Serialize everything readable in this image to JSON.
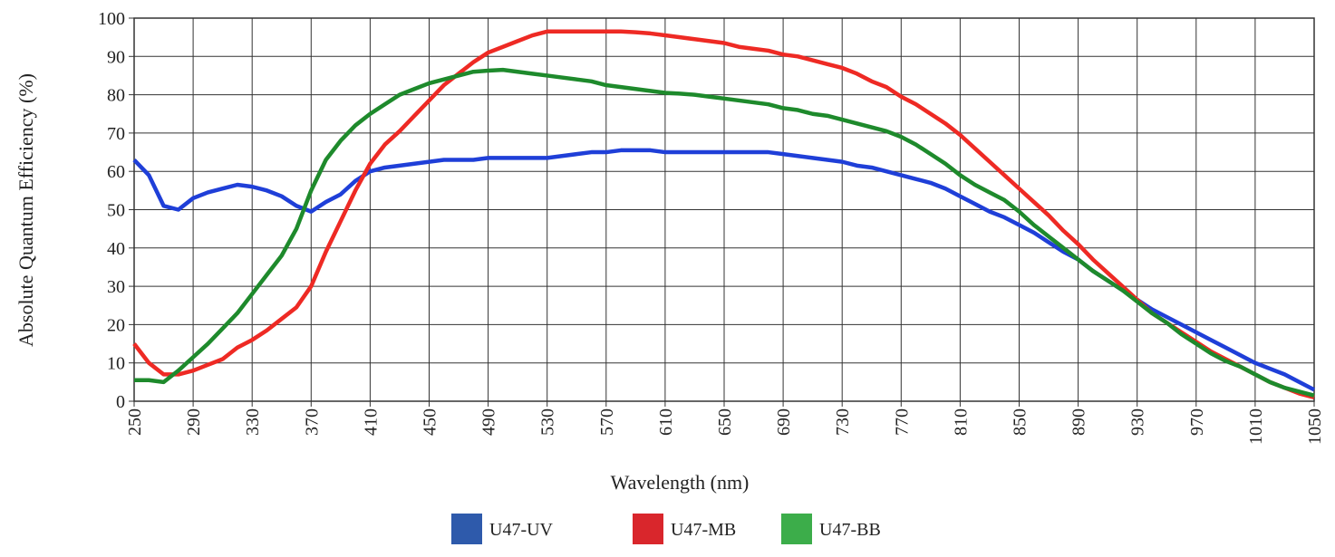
{
  "chart_data": {
    "type": "line",
    "xlabel": "Wavelength (nm)",
    "ylabel": "Absolute Quantum Efficiency (%)",
    "x": [
      250,
      260,
      270,
      280,
      290,
      300,
      310,
      320,
      330,
      340,
      350,
      360,
      370,
      380,
      390,
      400,
      410,
      420,
      430,
      440,
      450,
      460,
      470,
      480,
      490,
      500,
      510,
      520,
      530,
      540,
      550,
      560,
      570,
      580,
      590,
      600,
      610,
      620,
      630,
      640,
      650,
      660,
      670,
      680,
      690,
      700,
      710,
      720,
      730,
      740,
      750,
      760,
      770,
      780,
      790,
      800,
      810,
      820,
      830,
      840,
      850,
      860,
      870,
      880,
      890,
      900,
      910,
      920,
      930,
      940,
      950,
      960,
      970,
      980,
      990,
      1000,
      1010,
      1020,
      1030,
      1040,
      1050
    ],
    "series": [
      {
        "name": "U47-UV",
        "color": "#1f3fd8",
        "legend_color": "#2e5aab",
        "values": [
          63,
          59,
          51,
          50,
          53,
          54.5,
          55.5,
          56.5,
          56,
          55,
          53.5,
          51,
          49.5,
          52,
          54,
          57.5,
          60,
          61,
          61.5,
          62,
          62.5,
          63,
          63,
          63,
          63.5,
          63.5,
          63.5,
          63.5,
          63.5,
          64,
          64.5,
          65,
          65,
          65.5,
          65.5,
          65.5,
          65,
          65,
          65,
          65,
          65,
          65,
          65,
          65,
          64.5,
          64,
          63.5,
          63,
          62.5,
          61.5,
          61,
          60,
          59,
          58,
          57,
          55.5,
          53.5,
          51.5,
          49.5,
          48,
          46,
          44,
          41.5,
          39,
          37,
          34,
          31.5,
          29,
          26.5,
          24,
          22,
          20,
          18,
          16,
          14,
          12,
          10,
          8.5,
          7,
          5,
          3
        ]
      },
      {
        "name": "U47-MB",
        "color": "#ee2a24",
        "legend_color": "#d9262c",
        "values": [
          15,
          10,
          7,
          7,
          8,
          9.5,
          11,
          14,
          16,
          18.5,
          21.5,
          24.5,
          30,
          39,
          47,
          55,
          62,
          67,
          70.5,
          74.5,
          78.5,
          82.5,
          85.5,
          88.5,
          91,
          92.5,
          94,
          95.5,
          96.5,
          96.5,
          96.5,
          96.5,
          96.5,
          96.5,
          96.3,
          96,
          95.5,
          95,
          94.5,
          94,
          93.5,
          92.5,
          92,
          91.5,
          90.5,
          90,
          89,
          88,
          87,
          85.5,
          83.5,
          82,
          79.5,
          77.5,
          75,
          72.5,
          69.5,
          66,
          62.5,
          59,
          55.5,
          52,
          48.5,
          44.5,
          41,
          37,
          33.5,
          30,
          26.5,
          23,
          20.5,
          18,
          15.5,
          13,
          11,
          9,
          7,
          5,
          3.5,
          2,
          1
        ]
      },
      {
        "name": "U47-BB",
        "color": "#1e8a2c",
        "legend_color": "#3cad4a",
        "values": [
          5.5,
          5.5,
          5,
          8,
          11.5,
          15,
          19,
          23,
          28,
          33,
          38,
          45,
          55,
          63,
          68,
          72,
          75,
          77.5,
          80,
          81.5,
          83,
          84,
          85,
          86,
          86.3,
          86.5,
          86,
          85.5,
          85,
          84.5,
          84,
          83.5,
          82.5,
          82,
          81.5,
          81,
          80.5,
          80.3,
          80,
          79.5,
          79,
          78.5,
          78,
          77.5,
          76.5,
          76,
          75,
          74.5,
          73.5,
          72.5,
          71.5,
          70.5,
          69,
          67,
          64.5,
          62,
          59,
          56.5,
          54.5,
          52.5,
          49.5,
          46,
          43,
          40,
          37,
          34,
          31.5,
          29,
          26,
          23,
          20.5,
          17.5,
          15,
          12.5,
          10.5,
          9,
          7,
          5,
          3.5,
          2.5,
          1.5
        ]
      }
    ],
    "xlim": [
      250,
      1050
    ],
    "xticks": [
      250,
      290,
      330,
      370,
      410,
      450,
      490,
      530,
      570,
      610,
      650,
      690,
      730,
      770,
      810,
      850,
      890,
      930,
      970,
      1010,
      1050
    ],
    "ylim": [
      0,
      100
    ],
    "yticks": [
      0,
      10,
      20,
      30,
      40,
      50,
      60,
      70,
      80,
      90,
      100
    ],
    "grid": true,
    "legend": "bottom"
  }
}
